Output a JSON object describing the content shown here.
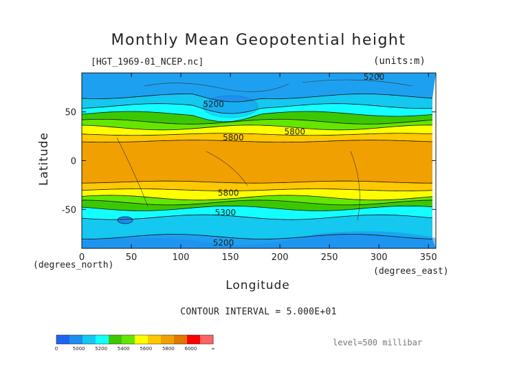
{
  "header": {
    "title": "Monthly Mean Geopotential height",
    "file_label": "[HGT_1969-01_NCEP.nc]",
    "units_label": "(units:m)"
  },
  "axes": {
    "ylabel": "Latitude",
    "xlabel": "Longitude",
    "x_unit_left": "(degrees_north)",
    "x_unit_right": "(degrees_east)"
  },
  "footer": {
    "contour_interval": "CONTOUR INTERVAL = 5.000E+01",
    "level": "level=500 millibar"
  },
  "chart_data": {
    "type": "heatmap",
    "title": "Monthly Mean Geopotential height",
    "subtitle": "[HGT_1969-01_NCEP.nc]",
    "units": "(units:m)",
    "xlabel": "Longitude",
    "ylabel": "Latitude",
    "xlim": [
      0,
      357.5
    ],
    "ylim": [
      -90,
      90
    ],
    "x_ticks": [
      0,
      50,
      100,
      150,
      200,
      250,
      300,
      350
    ],
    "y_ticks": [
      -50,
      0,
      50
    ],
    "contour_interval": 50,
    "contour_labels": [
      {
        "text": "5200",
        "lon": 133,
        "lat": 55
      },
      {
        "text": "5800",
        "lon": 153,
        "lat": 21
      },
      {
        "text": "5200",
        "lon": 295,
        "lat": 83
      },
      {
        "text": "5800",
        "lon": 215,
        "lat": 27
      },
      {
        "text": "5800",
        "lon": 148,
        "lat": -36
      },
      {
        "text": "5300",
        "lon": 145,
        "lat": -56
      },
      {
        "text": "5200",
        "lon": 143,
        "lat": -87
      }
    ],
    "colorbar": {
      "ticks": [
        "0",
        "5000",
        "5200",
        "5400",
        "5600",
        "5800",
        "6000",
        "∞"
      ],
      "colors": [
        "#1e64f0",
        "#1e8cf0",
        "#14c8f0",
        "#14ffff",
        "#3cc800",
        "#64e600",
        "#ffff00",
        "#ffc800",
        "#f0a000",
        "#e17800",
        "#ff0000",
        "#ff6464"
      ]
    },
    "bands": [
      {
        "lat_from": 90,
        "lat_to": 66,
        "color": "#1ea0f0",
        "range": "5000-5200"
      },
      {
        "lat_from": 66,
        "lat_to": 56,
        "color": "#14c8f0",
        "range": "5200-5300"
      },
      {
        "lat_from": 56,
        "lat_to": 48,
        "color": "#14ffff",
        "range": "5300-5400"
      },
      {
        "lat_from": 48,
        "lat_to": 40,
        "color": "#3cc800",
        "range": "5400-5500"
      },
      {
        "lat_from": 40,
        "lat_to": 34,
        "color": "#64e600",
        "range": "5500-5600"
      },
      {
        "lat_from": 34,
        "lat_to": 27,
        "color": "#ffff00",
        "range": "5600-5700"
      },
      {
        "lat_from": 27,
        "lat_to": 20,
        "color": "#ffc800",
        "range": "5700-5800"
      },
      {
        "lat_from": 20,
        "lat_to": -22,
        "color": "#f0a000",
        "range": "5800+"
      },
      {
        "lat_from": -22,
        "lat_to": -30,
        "color": "#ffc800",
        "range": "5700-5800"
      },
      {
        "lat_from": -30,
        "lat_to": -38,
        "color": "#ffff00",
        "range": "5600-5700"
      },
      {
        "lat_from": -38,
        "lat_to": -43,
        "color": "#64e600",
        "range": "5500-5600"
      },
      {
        "lat_from": -43,
        "lat_to": -49,
        "color": "#3cc800",
        "range": "5400-5500"
      },
      {
        "lat_from": -49,
        "lat_to": -58,
        "color": "#14ffff",
        "range": "5300-5400"
      },
      {
        "lat_from": -58,
        "lat_to": -78,
        "color": "#14c8f0",
        "range": "5200-5300"
      },
      {
        "lat_from": -78,
        "lat_to": -90,
        "color": "#1ea0f0",
        "range": "5000-5200"
      }
    ]
  }
}
